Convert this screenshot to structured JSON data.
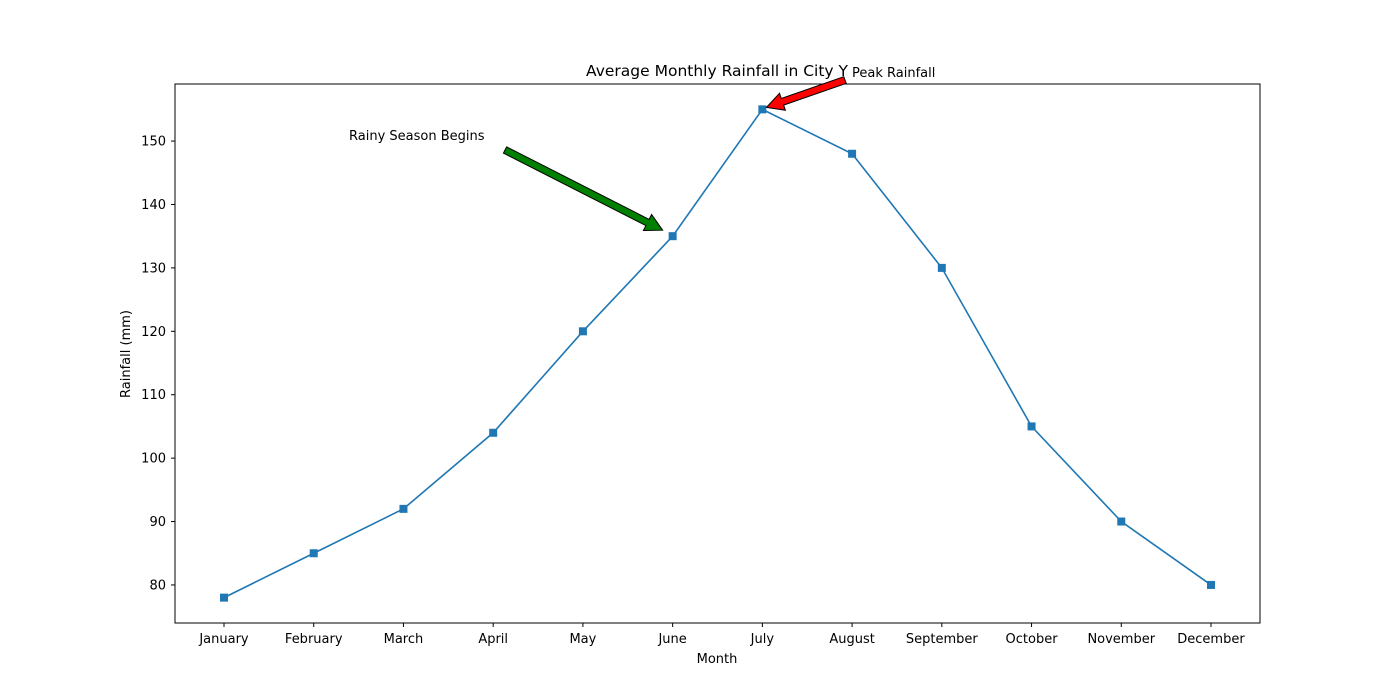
{
  "chart_data": {
    "type": "line",
    "title": "Average Monthly Rainfall in City Y",
    "xlabel": "Month",
    "ylabel": "Rainfall (mm)",
    "categories": [
      "January",
      "February",
      "March",
      "April",
      "May",
      "June",
      "July",
      "August",
      "September",
      "October",
      "November",
      "December"
    ],
    "series": [
      {
        "values": [
          78,
          85,
          92,
          104,
          120,
          135,
          155,
          148,
          130,
          105,
          90,
          80
        ],
        "color": "#1f77b4",
        "marker": "square"
      }
    ],
    "ylim": [
      74,
      159
    ],
    "yticks": [
      80,
      90,
      100,
      110,
      120,
      130,
      140,
      150
    ],
    "grid": false,
    "annotations": [
      {
        "text": "Rainy Season Begins",
        "target_category": "June",
        "target_value": 135,
        "arrow_color": "#008000"
      },
      {
        "text": "Peak Rainfall",
        "target_category": "July",
        "target_value": 155,
        "arrow_color": "#ff0000"
      }
    ]
  }
}
